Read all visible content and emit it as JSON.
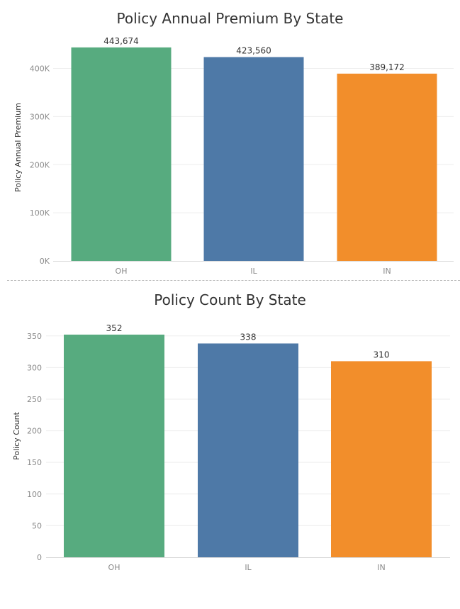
{
  "chart_data": [
    {
      "type": "bar",
      "title": "Policy Annual Premium By State",
      "ylabel": "Policy Annual Premium",
      "xlabel": "",
      "categories": [
        "OH",
        "IL",
        "IN"
      ],
      "values": [
        443674,
        423560,
        389172
      ],
      "value_labels": [
        "443,674",
        "423,560",
        "389,172"
      ],
      "colors": [
        "#57ab7f",
        "#4e79a7",
        "#f28e2b"
      ],
      "ylim": [
        0,
        470000
      ],
      "yticks": [
        0,
        100000,
        200000,
        300000,
        400000
      ],
      "ytick_labels": [
        "0K",
        "100K",
        "200K",
        "300K",
        "400K"
      ],
      "grid": true
    },
    {
      "type": "bar",
      "title": "Policy Count By State",
      "ylabel": "Policy Count",
      "xlabel": "",
      "categories": [
        "OH",
        "IL",
        "IN"
      ],
      "values": [
        352,
        338,
        310
      ],
      "value_labels": [
        "352",
        "338",
        "310"
      ],
      "colors": [
        "#57ab7f",
        "#4e79a7",
        "#f28e2b"
      ],
      "ylim": [
        0,
        380
      ],
      "yticks": [
        0,
        50,
        100,
        150,
        200,
        250,
        300,
        350
      ],
      "ytick_labels": [
        "0",
        "50",
        "100",
        "150",
        "200",
        "250",
        "300",
        "350"
      ],
      "grid": true
    }
  ]
}
